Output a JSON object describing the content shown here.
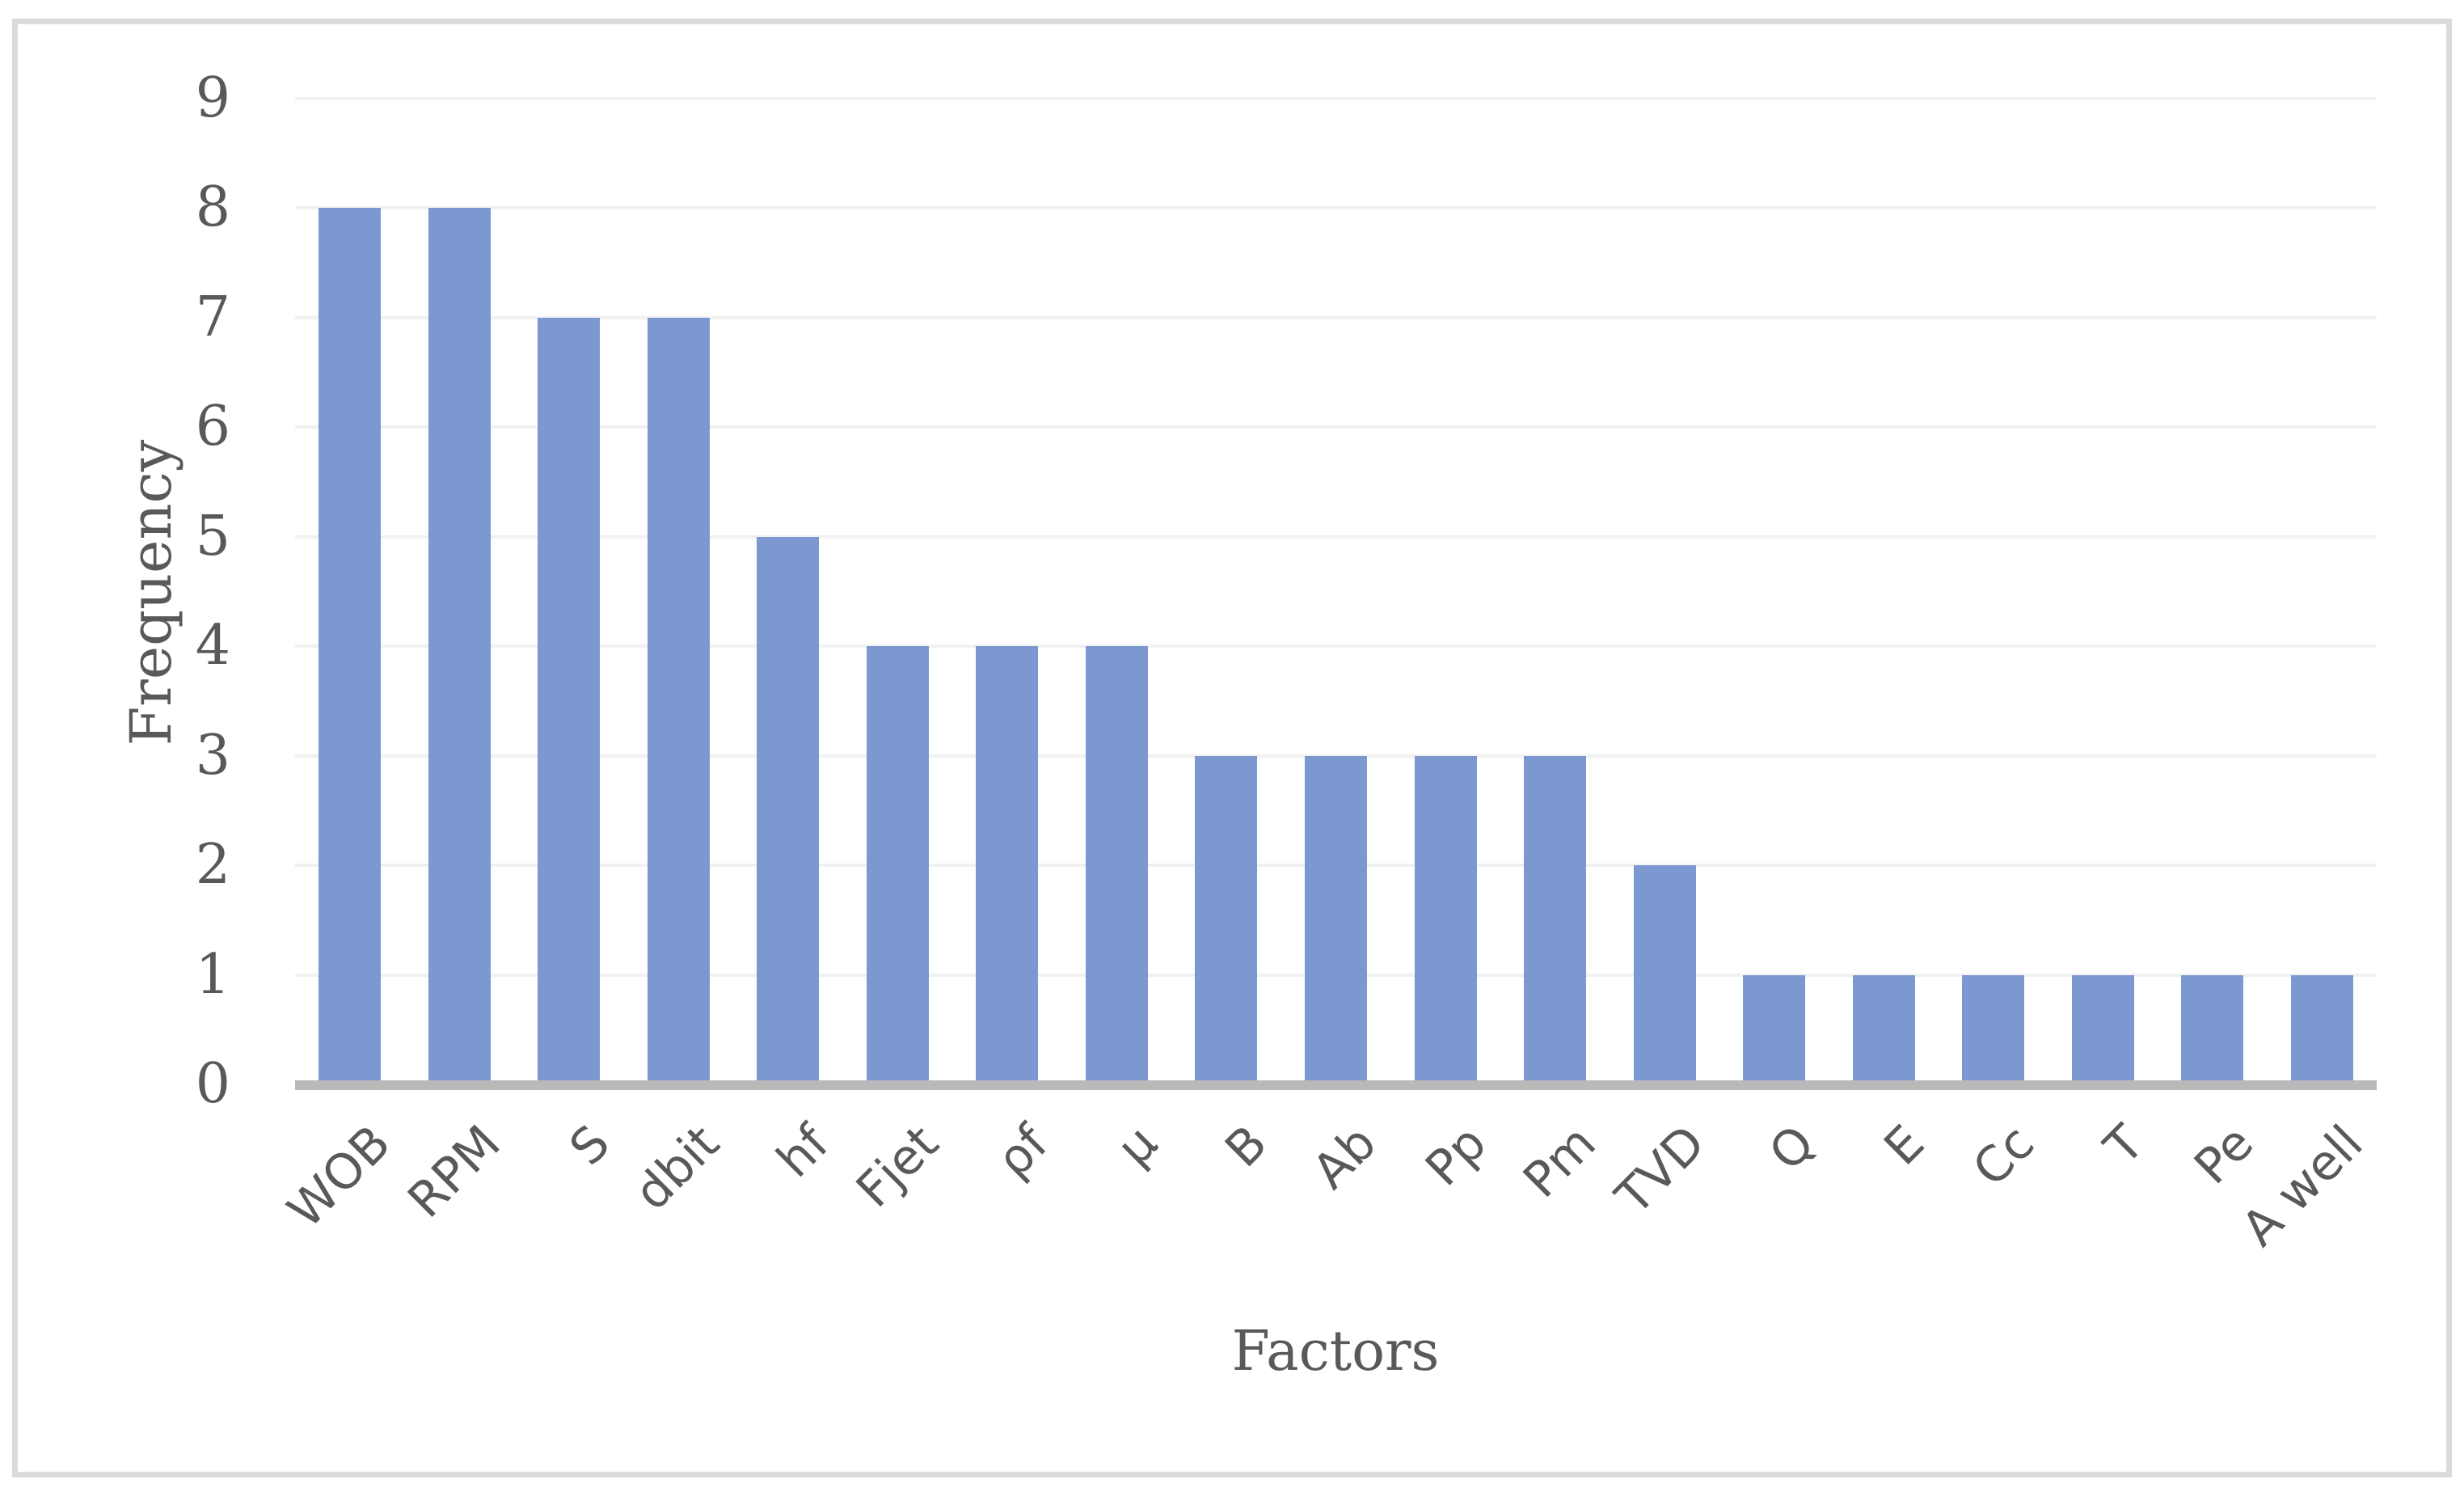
{
  "chart_data": {
    "type": "bar",
    "title": "",
    "categories": [
      "WOB",
      "RPM",
      "S",
      "dbit",
      "hf",
      "Fjet",
      "ρf",
      "μ",
      "B",
      "Ab",
      "Pp",
      "Pm",
      "TVD",
      "Q",
      "E",
      "Cc",
      "T",
      "Pe",
      "A well"
    ],
    "values": [
      8,
      8,
      7,
      7,
      5,
      4,
      4,
      4,
      3,
      3,
      3,
      3,
      2,
      1,
      1,
      1,
      1,
      1,
      1
    ],
    "xlabel": "Factors",
    "ylabel": "Frequency",
    "ylim": [
      0,
      9
    ],
    "yticks": [
      0,
      1,
      2,
      3,
      4,
      5,
      6,
      7,
      8,
      9
    ],
    "grid": "horizontal",
    "legend": "none",
    "colors": {
      "bar": "#7B98D1",
      "gridline": "#F1F1F1",
      "axis_line": "#B9B9B9",
      "text": "#595959",
      "frame_border": "#DBDBDB"
    }
  }
}
